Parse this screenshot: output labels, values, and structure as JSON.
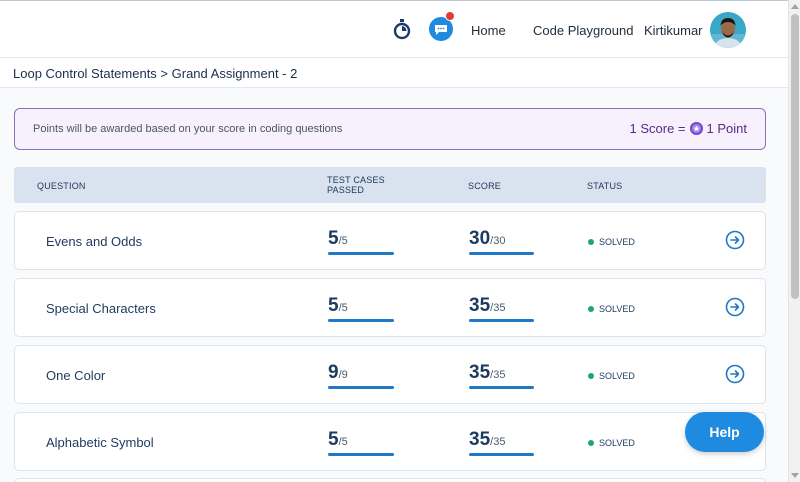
{
  "nav": {
    "home": "Home",
    "playground": "Code Playground",
    "user": "Kirtikumar",
    "icons": {
      "timer": "stopwatch-icon",
      "chat": "chat-bubble-icon",
      "avatar": "user-avatar"
    },
    "notification_color": "#e53935"
  },
  "breadcrumb": "Loop Control Statements > Grand Assignment - 2",
  "banner": {
    "message": "Points will be awarded based on your score in coding questions",
    "rate_left": "1 Score =",
    "rate_right": "1 Point"
  },
  "table": {
    "headers": {
      "question": "QUESTION",
      "tests_line1": "TEST CASES",
      "tests_line2": "PASSED",
      "score": "SCORE",
      "status": "STATUS"
    },
    "rows": [
      {
        "name": "Evens and Odds",
        "passed": "5",
        "total_tests": "/5",
        "score": "30",
        "max_score": "/30",
        "status": "SOLVED"
      },
      {
        "name": "Special Characters",
        "passed": "5",
        "total_tests": "/5",
        "score": "35",
        "max_score": "/35",
        "status": "SOLVED"
      },
      {
        "name": "One Color",
        "passed": "9",
        "total_tests": "/9",
        "score": "35",
        "max_score": "/35",
        "status": "SOLVED"
      },
      {
        "name": "Alphabetic Symbol",
        "passed": "5",
        "total_tests": "/5",
        "score": "35",
        "max_score": "/35",
        "status": "SOLVED"
      }
    ]
  },
  "help": {
    "label": "Help"
  },
  "colors": {
    "accent": "#1f78c8",
    "solved": "#1ea672",
    "banner_border": "#8b6fb8",
    "help_bg": "#1f8be0"
  }
}
